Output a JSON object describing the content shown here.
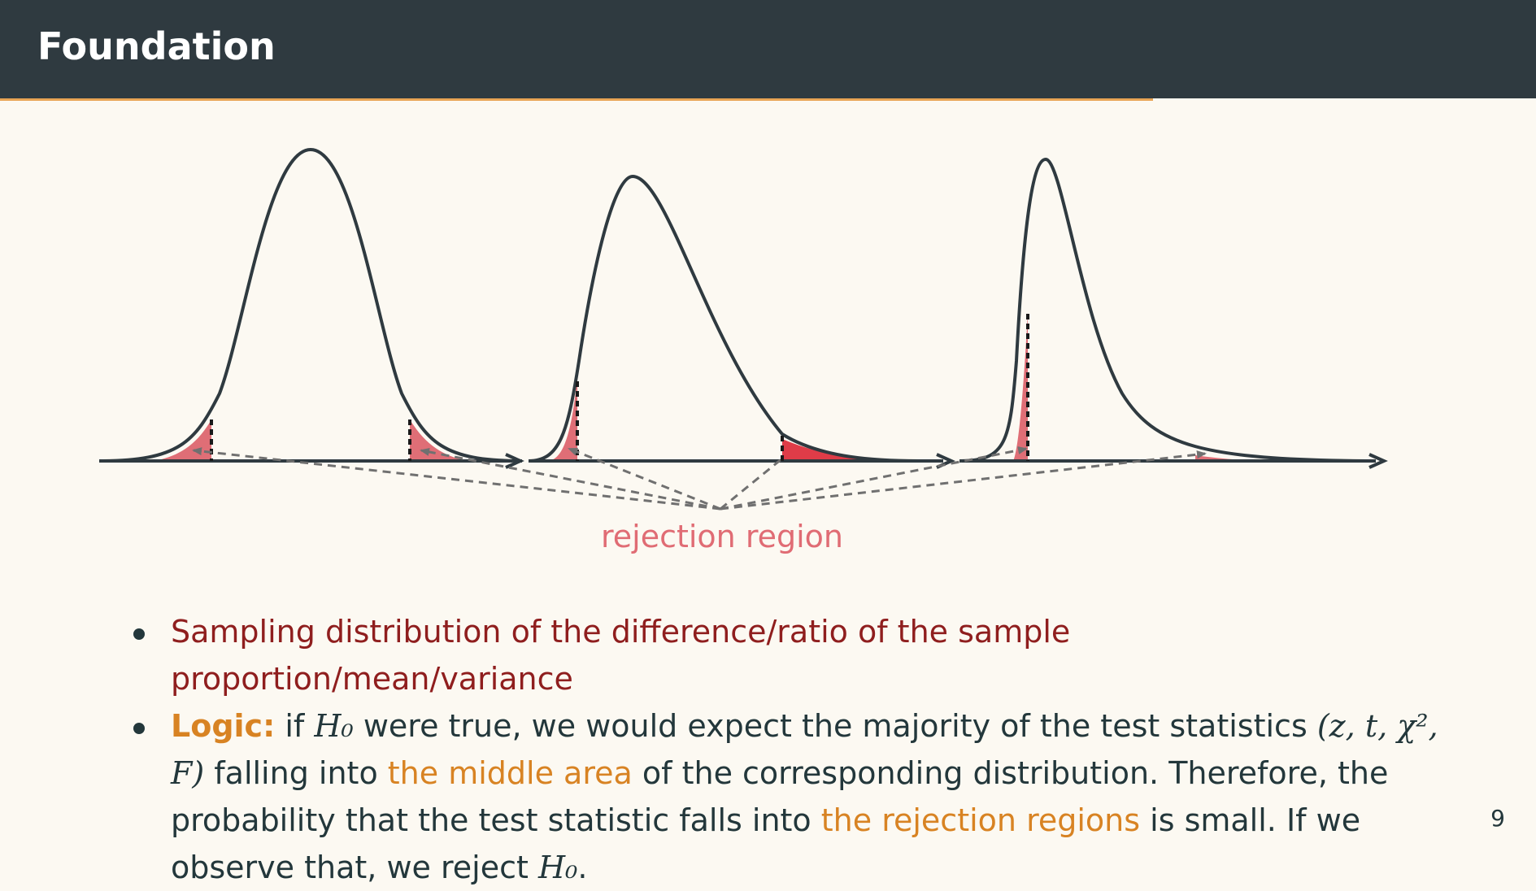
{
  "header": {
    "title": "Foundation"
  },
  "diagram": {
    "label": "rejection region",
    "colors": {
      "curve": "#2f3a40",
      "tail": "#df6e76",
      "label": "#e06c74"
    },
    "panels": [
      {
        "distribution": "symmetric",
        "tails": "two-sided"
      },
      {
        "distribution": "right-skewed",
        "tails": "two-sided"
      },
      {
        "distribution": "strongly right-skewed",
        "tails": "two-sided"
      }
    ]
  },
  "bullets": {
    "item1": "Sampling distribution of the difference/ratio of the sample proportion/mean/variance",
    "item2": {
      "logic_label": "Logic:",
      "t1": " if ",
      "h0": "H₀",
      "t2": " were true, we would expect the majority of the test statistics ",
      "stats": "(z, t, χ², F)",
      "t3": " falling into ",
      "middle_area": "the middle area",
      "t4": " of the corresponding distribution. Therefore, the probability that the test statistic falls into ",
      "rejection_regions": "the rejection regions",
      "t5": " is small. If we observe that, we reject ",
      "h0_end": "H₀",
      "t6": "."
    }
  },
  "page_number": "9"
}
